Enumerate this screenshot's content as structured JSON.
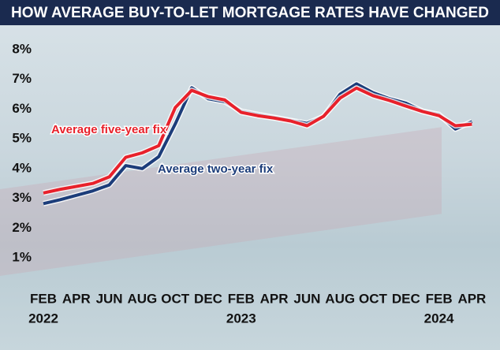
{
  "chart_data": {
    "type": "line",
    "title": "HOW AVERAGE BUY-TO-LET MORTGAGE RATES HAVE CHANGED",
    "x": [
      "2022-02",
      "2022-03",
      "2022-04",
      "2022-05",
      "2022-06",
      "2022-07",
      "2022-08",
      "2022-09",
      "2022-10",
      "2022-11",
      "2022-12",
      "2023-01",
      "2023-02",
      "2023-03",
      "2023-04",
      "2023-05",
      "2023-06",
      "2023-07",
      "2023-08",
      "2023-09",
      "2023-10",
      "2023-11",
      "2023-12",
      "2024-01",
      "2024-02",
      "2024-03",
      "2024-04"
    ],
    "series": [
      {
        "name": "Average two-year fix",
        "color": "#1c3d7a",
        "values": [
          2.82,
          2.95,
          3.1,
          3.25,
          3.45,
          4.1,
          4.0,
          4.4,
          5.5,
          6.72,
          6.35,
          6.25,
          5.93,
          5.82,
          5.72,
          5.62,
          5.52,
          5.75,
          6.5,
          6.85,
          6.55,
          6.35,
          6.2,
          5.93,
          5.82,
          5.33,
          5.58
        ]
      },
      {
        "name": "Average five-year fix",
        "color": "#e8212b",
        "values": [
          3.18,
          3.3,
          3.4,
          3.5,
          3.72,
          4.38,
          4.53,
          4.77,
          6.05,
          6.63,
          6.42,
          6.31,
          5.89,
          5.78,
          5.7,
          5.6,
          5.44,
          5.76,
          6.37,
          6.71,
          6.45,
          6.29,
          6.1,
          5.92,
          5.78,
          5.44,
          5.49
        ]
      }
    ],
    "ylim": [
      1,
      8
    ],
    "yticks": [
      {
        "value": 1,
        "label": "1%"
      },
      {
        "value": 2,
        "label": "2%"
      },
      {
        "value": 3,
        "label": "3%"
      },
      {
        "value": 4,
        "label": "4%"
      },
      {
        "value": 5,
        "label": "5%"
      },
      {
        "value": 6,
        "label": "6%"
      },
      {
        "value": 7,
        "label": "7%"
      },
      {
        "value": 8,
        "label": "8%"
      }
    ],
    "xticks": [
      {
        "value": "2022-02",
        "label": "FEB"
      },
      {
        "value": "2022-04",
        "label": "APR"
      },
      {
        "value": "2022-06",
        "label": "JUN"
      },
      {
        "value": "2022-08",
        "label": "AUG"
      },
      {
        "value": "2022-10",
        "label": "OCT"
      },
      {
        "value": "2022-12",
        "label": "DEC"
      },
      {
        "value": "2023-02",
        "label": "FEB"
      },
      {
        "value": "2023-04",
        "label": "APR"
      },
      {
        "value": "2023-06",
        "label": "JUN"
      },
      {
        "value": "2023-08",
        "label": "AUG"
      },
      {
        "value": "2023-10",
        "label": "OCT"
      },
      {
        "value": "2023-12",
        "label": "DEC"
      },
      {
        "value": "2024-02",
        "label": "FEB"
      },
      {
        "value": "2024-04",
        "label": "APR"
      }
    ],
    "year_labels": [
      {
        "value": "2022-02",
        "label": "2022"
      },
      {
        "value": "2023-02",
        "label": "2023"
      },
      {
        "value": "2024-02",
        "label": "2024"
      }
    ],
    "grid": false
  }
}
